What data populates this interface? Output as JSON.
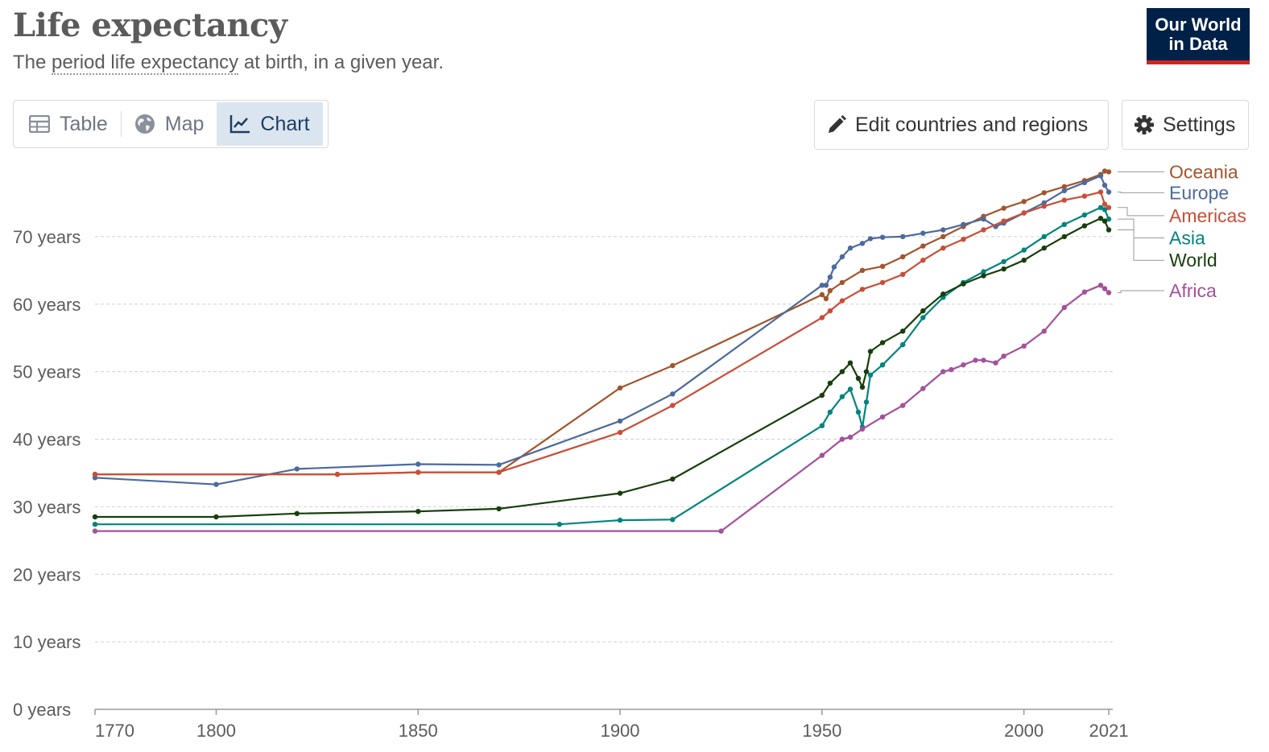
{
  "header": {
    "title": "Life expectancy",
    "subtitle_pre": "The ",
    "subtitle_link": "period life expectancy",
    "subtitle_post": " at birth, in a given year.",
    "logo_line1": "Our World",
    "logo_line2": "in Data"
  },
  "tabs": [
    {
      "label": "Table",
      "icon": "table-icon"
    },
    {
      "label": "Map",
      "icon": "globe-icon"
    },
    {
      "label": "Chart",
      "icon": "line-chart-icon",
      "active": true
    }
  ],
  "buttons": {
    "edit": "Edit countries and regions",
    "settings": "Settings"
  },
  "colors": {
    "Oceania": "#a2552c",
    "Europe": "#4c6a9c",
    "Americas": "#c94e37",
    "Asia": "#00847e",
    "World": "#173f0c",
    "Africa": "#a3519b"
  },
  "chart_data": {
    "type": "line",
    "ylim": [
      0,
      80
    ],
    "xlim": [
      1770,
      2022
    ],
    "yticks": [
      {
        "v": 0,
        "label": "0 years"
      },
      {
        "v": 10,
        "label": "10 years"
      },
      {
        "v": 20,
        "label": "20 years"
      },
      {
        "v": 30,
        "label": "30 years"
      },
      {
        "v": 40,
        "label": "40 years"
      },
      {
        "v": 50,
        "label": "50 years"
      },
      {
        "v": 60,
        "label": "60 years"
      },
      {
        "v": 70,
        "label": "70 years"
      }
    ],
    "xticks": [
      {
        "v": 1770,
        "label": "1770"
      },
      {
        "v": 1800,
        "label": "1800"
      },
      {
        "v": 1850,
        "label": "1850"
      },
      {
        "v": 1900,
        "label": "1900"
      },
      {
        "v": 1950,
        "label": "1950"
      },
      {
        "v": 2000,
        "label": "2000"
      },
      {
        "v": 2021,
        "label": "2021"
      }
    ],
    "grid": "horizontal",
    "legend": "right",
    "series": [
      {
        "name": "Oceania",
        "label_value": 79.6,
        "points": [
          [
            1770,
            34.8
          ],
          [
            1830,
            34.8
          ],
          [
            1850,
            35.1
          ],
          [
            1870,
            35.1
          ],
          [
            1900,
            47.6
          ],
          [
            1913,
            50.9
          ],
          [
            1950,
            61.4
          ],
          [
            1951,
            60.8
          ],
          [
            1952,
            62
          ],
          [
            1955,
            63.2
          ],
          [
            1960,
            65
          ],
          [
            1965,
            65.6
          ],
          [
            1970,
            67
          ],
          [
            1975,
            68.6
          ],
          [
            1980,
            70
          ],
          [
            1985,
            71.5
          ],
          [
            1990,
            73
          ],
          [
            1995,
            74.2
          ],
          [
            2000,
            75.2
          ],
          [
            2005,
            76.5
          ],
          [
            2010,
            77.4
          ],
          [
            2015,
            78.3
          ],
          [
            2019,
            79.2
          ],
          [
            2020,
            79.7
          ],
          [
            2021,
            79.6
          ]
        ]
      },
      {
        "name": "Europe",
        "label_value": 76.6,
        "points": [
          [
            1770,
            34.3
          ],
          [
            1800,
            33.3
          ],
          [
            1820,
            35.6
          ],
          [
            1850,
            36.3
          ],
          [
            1870,
            36.2
          ],
          [
            1900,
            42.7
          ],
          [
            1913,
            46.7
          ],
          [
            1950,
            62.8
          ],
          [
            1951,
            62.8
          ],
          [
            1952,
            64
          ],
          [
            1953,
            65.5
          ],
          [
            1955,
            67
          ],
          [
            1957,
            68.3
          ],
          [
            1960,
            69
          ],
          [
            1962,
            69.7
          ],
          [
            1965,
            69.9
          ],
          [
            1970,
            70
          ],
          [
            1975,
            70.5
          ],
          [
            1980,
            71
          ],
          [
            1985,
            71.8
          ],
          [
            1990,
            72.6
          ],
          [
            1993,
            71.5
          ],
          [
            1995,
            72
          ],
          [
            2000,
            73.5
          ],
          [
            2005,
            75
          ],
          [
            2010,
            76.8
          ],
          [
            2015,
            78
          ],
          [
            2019,
            79
          ],
          [
            2020,
            77.6
          ],
          [
            2021,
            76.6
          ]
        ]
      },
      {
        "name": "Americas",
        "label_value": 74.3,
        "points": [
          [
            1770,
            34.8
          ],
          [
            1830,
            34.8
          ],
          [
            1850,
            35.1
          ],
          [
            1870,
            35.1
          ],
          [
            1900,
            41
          ],
          [
            1913,
            45
          ],
          [
            1950,
            58
          ],
          [
            1952,
            59
          ],
          [
            1955,
            60.5
          ],
          [
            1960,
            62.2
          ],
          [
            1965,
            63.2
          ],
          [
            1970,
            64.4
          ],
          [
            1975,
            66.5
          ],
          [
            1980,
            68.3
          ],
          [
            1985,
            69.6
          ],
          [
            1990,
            71
          ],
          [
            1995,
            72.3
          ],
          [
            2000,
            73.5
          ],
          [
            2005,
            74.5
          ],
          [
            2010,
            75.4
          ],
          [
            2015,
            76
          ],
          [
            2019,
            76.6
          ],
          [
            2020,
            74.8
          ],
          [
            2021,
            74.3
          ]
        ]
      },
      {
        "name": "Asia",
        "label_value": 72.6,
        "points": [
          [
            1770,
            27.4
          ],
          [
            1885,
            27.4
          ],
          [
            1900,
            28
          ],
          [
            1913,
            28.1
          ],
          [
            1950,
            42
          ],
          [
            1952,
            44
          ],
          [
            1955,
            46.3
          ],
          [
            1957,
            47.4
          ],
          [
            1959,
            44
          ],
          [
            1960,
            41.8
          ],
          [
            1961,
            45.5
          ],
          [
            1962,
            49.5
          ],
          [
            1965,
            51
          ],
          [
            1970,
            54
          ],
          [
            1975,
            58
          ],
          [
            1980,
            61
          ],
          [
            1985,
            63.2
          ],
          [
            1990,
            64.8
          ],
          [
            1995,
            66.3
          ],
          [
            2000,
            68
          ],
          [
            2005,
            70
          ],
          [
            2010,
            71.8
          ],
          [
            2015,
            73.2
          ],
          [
            2019,
            74.3
          ],
          [
            2020,
            74
          ],
          [
            2021,
            72.6
          ]
        ]
      },
      {
        "name": "World",
        "label_value": 71.0,
        "points": [
          [
            1770,
            28.5
          ],
          [
            1800,
            28.5
          ],
          [
            1820,
            29
          ],
          [
            1850,
            29.3
          ],
          [
            1870,
            29.7
          ],
          [
            1900,
            32
          ],
          [
            1913,
            34.1
          ],
          [
            1950,
            46.5
          ],
          [
            1952,
            48.3
          ],
          [
            1955,
            50
          ],
          [
            1957,
            51.3
          ],
          [
            1959,
            49
          ],
          [
            1960,
            47.7
          ],
          [
            1961,
            50
          ],
          [
            1962,
            53
          ],
          [
            1965,
            54.3
          ],
          [
            1970,
            56
          ],
          [
            1975,
            59
          ],
          [
            1980,
            61.5
          ],
          [
            1985,
            63
          ],
          [
            1990,
            64.2
          ],
          [
            1995,
            65.2
          ],
          [
            2000,
            66.5
          ],
          [
            2005,
            68.3
          ],
          [
            2010,
            70
          ],
          [
            2015,
            71.6
          ],
          [
            2019,
            72.7
          ],
          [
            2020,
            72.3
          ],
          [
            2021,
            71
          ]
        ]
      },
      {
        "name": "Africa",
        "label_value": 61.7,
        "points": [
          [
            1770,
            26.4
          ],
          [
            1925,
            26.4
          ],
          [
            1950,
            37.6
          ],
          [
            1955,
            40
          ],
          [
            1957,
            40.3
          ],
          [
            1960,
            41.5
          ],
          [
            1965,
            43.3
          ],
          [
            1970,
            45
          ],
          [
            1975,
            47.5
          ],
          [
            1980,
            50
          ],
          [
            1982,
            50.3
          ],
          [
            1985,
            51
          ],
          [
            1988,
            51.7
          ],
          [
            1990,
            51.7
          ],
          [
            1993,
            51.3
          ],
          [
            1995,
            52.3
          ],
          [
            2000,
            53.8
          ],
          [
            2005,
            56
          ],
          [
            2010,
            59.5
          ],
          [
            2015,
            61.8
          ],
          [
            2019,
            62.8
          ],
          [
            2020,
            62.3
          ],
          [
            2021,
            61.7
          ]
        ]
      }
    ],
    "labels": [
      {
        "name": "Oceania",
        "y": 79.6
      },
      {
        "name": "Europe",
        "y": 76.5
      },
      {
        "name": "Americas",
        "y": 73.1
      },
      {
        "name": "Asia",
        "y": 69.8
      },
      {
        "name": "World",
        "y": 66.5
      },
      {
        "name": "Africa",
        "y": 62.0
      }
    ]
  }
}
